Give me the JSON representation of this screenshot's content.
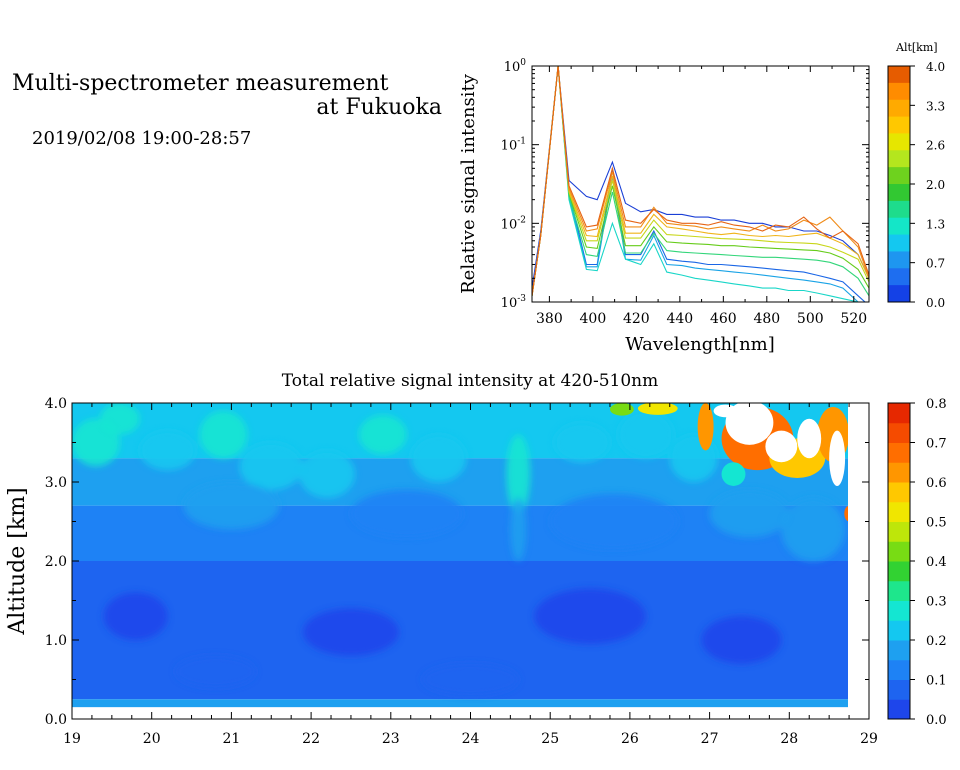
{
  "header": {
    "title_line1": "Multi-spectrometer measurement",
    "title_line2": "at Fukuoka",
    "date": "2019/02/08 19:00-28:57"
  },
  "chart_data": [
    {
      "type": "line",
      "xlabel": "Wavelength[nm]",
      "ylabel": "Relative signal intensity",
      "xlim": [
        372,
        527
      ],
      "ylim": [
        0.001,
        1
      ],
      "yscale": "log",
      "xticks": [
        380,
        400,
        420,
        440,
        460,
        480,
        500,
        520
      ],
      "yticks": [
        {
          "value": 0.001,
          "base": "10",
          "exp": "-3"
        },
        {
          "value": 0.01,
          "base": "10",
          "exp": "-2"
        },
        {
          "value": 0.1,
          "base": "10",
          "exp": "-1"
        },
        {
          "value": 1,
          "base": "10",
          "exp": "0"
        }
      ],
      "x": [
        372,
        376,
        384,
        389,
        397,
        402,
        409,
        415,
        422,
        428,
        434,
        441,
        447,
        453,
        459,
        465,
        472,
        478,
        484,
        490,
        497,
        503,
        509,
        515,
        522,
        527
      ],
      "series": [
        {
          "color": "#1a3fd6",
          "values": [
            0.0015,
            0.008,
            1.0,
            0.035,
            0.022,
            0.02,
            0.06,
            0.018,
            0.014,
            0.015,
            0.013,
            0.013,
            0.012,
            0.012,
            0.011,
            0.011,
            0.01,
            0.01,
            0.009,
            0.009,
            0.008,
            0.008,
            0.007,
            0.006,
            0.004,
            0.002
          ]
        },
        {
          "color": "#1a66e6",
          "values": [
            0.0012,
            0.007,
            1.0,
            0.025,
            0.003,
            0.003,
            0.05,
            0.004,
            0.004,
            0.008,
            0.0035,
            0.0033,
            0.0032,
            0.003,
            0.003,
            0.0029,
            0.0028,
            0.0027,
            0.0026,
            0.0025,
            0.0024,
            0.0022,
            0.002,
            0.0018,
            0.0012,
            0.0009
          ]
        },
        {
          "color": "#19a3e6",
          "values": [
            0.0012,
            0.007,
            1.0,
            0.022,
            0.0028,
            0.0028,
            0.04,
            0.0035,
            0.0034,
            0.007,
            0.003,
            0.0029,
            0.0027,
            0.0026,
            0.0025,
            0.0024,
            0.0023,
            0.0022,
            0.0021,
            0.002,
            0.0019,
            0.0018,
            0.0017,
            0.0015,
            0.001,
            0.0008
          ]
        },
        {
          "color": "#19d6c8",
          "values": [
            0.0012,
            0.007,
            1.0,
            0.02,
            0.0026,
            0.0025,
            0.01,
            0.0035,
            0.003,
            0.0055,
            0.0024,
            0.0022,
            0.002,
            0.0019,
            0.0018,
            0.0017,
            0.0016,
            0.0015,
            0.0015,
            0.0014,
            0.0014,
            0.0013,
            0.0012,
            0.0011,
            0.001,
            0.0008
          ]
        },
        {
          "color": "#33d67a",
          "values": [
            0.0012,
            0.007,
            1.0,
            0.022,
            0.004,
            0.0038,
            0.025,
            0.0042,
            0.0042,
            0.0075,
            0.0045,
            0.0043,
            0.0042,
            0.0041,
            0.004,
            0.0039,
            0.0038,
            0.0037,
            0.0037,
            0.0036,
            0.0035,
            0.0034,
            0.0032,
            0.0028,
            0.002,
            0.0012
          ]
        },
        {
          "color": "#66cc1a",
          "values": [
            0.0012,
            0.007,
            1.0,
            0.024,
            0.005,
            0.0048,
            0.03,
            0.0052,
            0.0052,
            0.009,
            0.0058,
            0.0056,
            0.0055,
            0.0054,
            0.0052,
            0.0052,
            0.005,
            0.0049,
            0.0048,
            0.0047,
            0.0046,
            0.0045,
            0.0042,
            0.0036,
            0.0026,
            0.0015
          ]
        },
        {
          "color": "#c8d619",
          "values": [
            0.0012,
            0.007,
            1.0,
            0.025,
            0.006,
            0.006,
            0.035,
            0.0065,
            0.0065,
            0.011,
            0.0072,
            0.007,
            0.0068,
            0.0066,
            0.0064,
            0.0063,
            0.0062,
            0.006,
            0.0058,
            0.0057,
            0.0056,
            0.0055,
            0.005,
            0.0043,
            0.0035,
            0.0018
          ]
        },
        {
          "color": "#f0b419",
          "values": [
            0.0012,
            0.007,
            1.0,
            0.026,
            0.007,
            0.0068,
            0.04,
            0.0075,
            0.0075,
            0.013,
            0.009,
            0.0085,
            0.008,
            0.0075,
            0.0072,
            0.0075,
            0.007,
            0.0068,
            0.007,
            0.0068,
            0.0072,
            0.0075,
            0.0065,
            0.0055,
            0.004,
            0.002
          ]
        },
        {
          "color": "#f08c19",
          "values": [
            0.0012,
            0.007,
            1.0,
            0.028,
            0.008,
            0.0085,
            0.045,
            0.009,
            0.009,
            0.016,
            0.01,
            0.0095,
            0.0092,
            0.0085,
            0.009,
            0.0085,
            0.008,
            0.0095,
            0.008,
            0.0085,
            0.011,
            0.0095,
            0.012,
            0.008,
            0.005,
            0.002
          ]
        },
        {
          "color": "#e66414",
          "values": [
            0.0012,
            0.007,
            1.0,
            0.03,
            0.009,
            0.0095,
            0.05,
            0.011,
            0.01,
            0.015,
            0.011,
            0.01,
            0.01,
            0.0095,
            0.0105,
            0.0095,
            0.009,
            0.008,
            0.0095,
            0.009,
            0.012,
            0.0085,
            0.0065,
            0.008,
            0.0055,
            0.0022
          ]
        }
      ],
      "colorbar": {
        "label": "Alt[km]",
        "tick_labels": [
          "4.0",
          "3.3",
          "2.6",
          "2.0",
          "1.3",
          "0.7",
          "0.0"
        ],
        "colors": [
          "#e65c00",
          "#ff8c00",
          "#ffaa00",
          "#ffc800",
          "#e6e600",
          "#b4e61e",
          "#6ed21e",
          "#32c832",
          "#1edc8c",
          "#14e6c8",
          "#14c8f0",
          "#1e96f0",
          "#1e6ef0",
          "#1441e6"
        ]
      }
    },
    {
      "type": "heatmap",
      "title": "Total relative signal intensity at 420-510nm",
      "xlabel": "",
      "ylabel": "Altitude [km]",
      "xlim": [
        19,
        29
      ],
      "ylim": [
        0,
        4
      ],
      "xtick_labels": [
        "19",
        "20",
        "21",
        "22",
        "23",
        "24",
        "25",
        "26",
        "27",
        "28",
        "29"
      ],
      "ytick_labels": [
        "0.0",
        "1.0",
        "2.0",
        "3.0",
        "4.0"
      ],
      "data_xrange": [
        19,
        28.8
      ],
      "data_yrange": [
        0.15,
        4.0
      ],
      "colorbar": {
        "range": [
          0,
          0.8
        ],
        "tick_labels": [
          "0.0",
          "0.1",
          "0.2",
          "0.3",
          "0.4",
          "0.5",
          "0.6",
          "0.7",
          "0.8"
        ],
        "colors": [
          "#1e46eb",
          "#1e64f0",
          "#1e82f5",
          "#1ea0f0",
          "#14c8f0",
          "#14e6d2",
          "#1ee68c",
          "#32d232",
          "#78dc14",
          "#bee60a",
          "#f0e600",
          "#ffc800",
          "#ff9600",
          "#ff6e00",
          "#f54b00",
          "#e62800"
        ]
      }
    }
  ]
}
